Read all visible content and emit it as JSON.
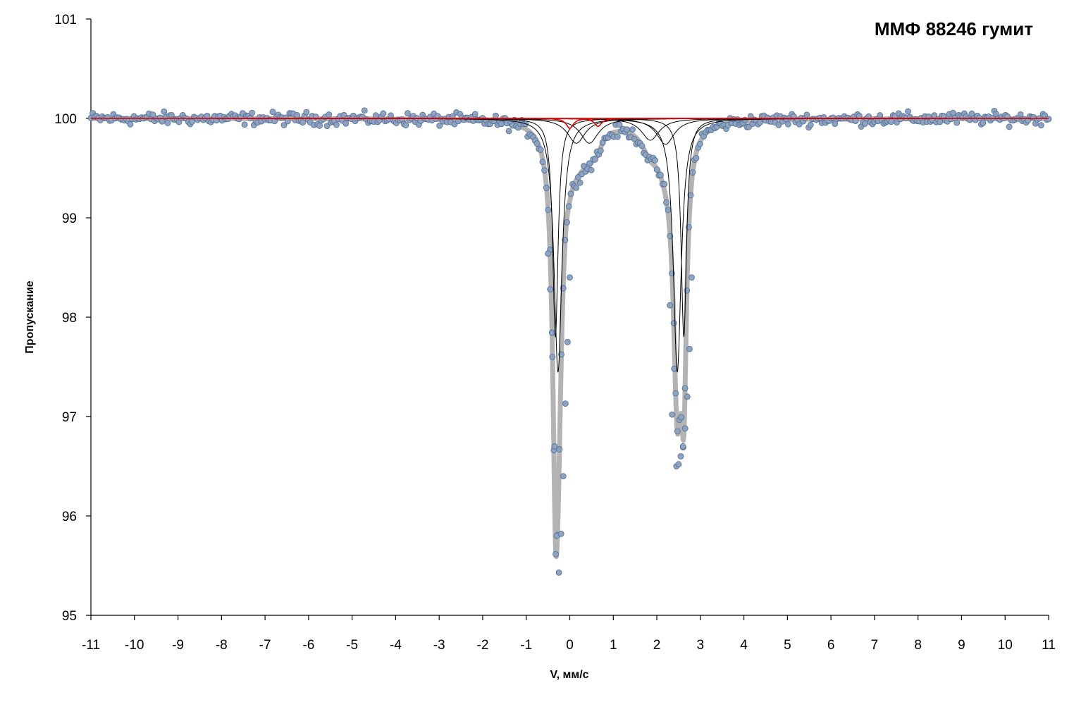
{
  "chart_data": {
    "type": "scatter",
    "title": "ММФ 88246 гумит",
    "xlabel": "V, мм/с",
    "ylabel": "Пропускание",
    "xlim": [
      -11,
      11
    ],
    "ylim": [
      95,
      101
    ],
    "x_ticks": [
      -11,
      -10,
      -9,
      -8,
      -7,
      -6,
      -5,
      -4,
      -3,
      -2,
      -1,
      0,
      1,
      2,
      3,
      4,
      5,
      6,
      7,
      8,
      9,
      10,
      11
    ],
    "y_ticks": [
      95,
      96,
      97,
      98,
      99,
      100,
      101
    ],
    "grid": false,
    "legend": "none",
    "colors": {
      "experimental_points": "#8EA3BF",
      "experimental_points_edge": "#4F6D96",
      "envelope": "#B3B3B3",
      "subspectra": "#000000",
      "minor_doublets": "#E00000"
    },
    "series": [
      {
        "type": "scatter",
        "baseline": 100.0,
        "noise_amplitude": 0.07,
        "points_sampled": [
          {
            "x": -0.3,
            "y": 95.8
          },
          {
            "x": -0.25,
            "y": 95.43
          },
          {
            "x": -0.2,
            "y": 95.82
          },
          {
            "x": -0.35,
            "y": 96.7
          },
          {
            "x": -0.15,
            "y": 96.4
          },
          {
            "x": -0.4,
            "y": 97.6
          },
          {
            "x": -0.1,
            "y": 97.13
          },
          {
            "x": -0.45,
            "y": 98.28
          },
          {
            "x": -0.05,
            "y": 97.75
          },
          {
            "x": -0.5,
            "y": 98.64
          },
          {
            "x": 0.0,
            "y": 98.4
          },
          {
            "x": 2.4,
            "y": 97.48
          },
          {
            "x": 2.45,
            "y": 96.5
          },
          {
            "x": 2.55,
            "y": 96.6
          },
          {
            "x": 2.6,
            "y": 96.7
          },
          {
            "x": 2.65,
            "y": 96.88
          },
          {
            "x": 2.5,
            "y": 96.52
          },
          {
            "x": 2.7,
            "y": 97.2
          },
          {
            "x": 2.75,
            "y": 97.68
          },
          {
            "x": 2.35,
            "y": 97.02
          },
          {
            "x": 2.3,
            "y": 98.12
          },
          {
            "x": 2.8,
            "y": 98.4
          }
        ]
      },
      {
        "type": "line",
        "role": "envelope",
        "model": "baseline 100 minus sum of components"
      }
    ],
    "components": [
      {
        "role": "subspectrum",
        "center": -0.27,
        "depth": 2.55,
        "fwhm": 0.22
      },
      {
        "role": "subspectrum",
        "center": -0.33,
        "depth": 2.2,
        "fwhm": 0.15
      },
      {
        "role": "subspectrum",
        "center": 2.47,
        "depth": 2.55,
        "fwhm": 0.22
      },
      {
        "role": "subspectrum",
        "center": 2.62,
        "depth": 2.2,
        "fwhm": 0.15
      },
      {
        "role": "subspectrum",
        "center": 0.15,
        "depth": 0.25,
        "fwhm": 0.5
      },
      {
        "role": "subspectrum",
        "center": 0.45,
        "depth": 0.25,
        "fwhm": 0.5
      },
      {
        "role": "subspectrum",
        "center": 1.85,
        "depth": 0.22,
        "fwhm": 0.5
      },
      {
        "role": "subspectrum",
        "center": 2.2,
        "depth": 0.26,
        "fwhm": 0.5
      },
      {
        "role": "minor",
        "center": 0.0,
        "depth": 0.1,
        "fwhm": 0.2
      },
      {
        "role": "minor",
        "center": 0.65,
        "depth": 0.08,
        "fwhm": 0.2
      }
    ]
  }
}
